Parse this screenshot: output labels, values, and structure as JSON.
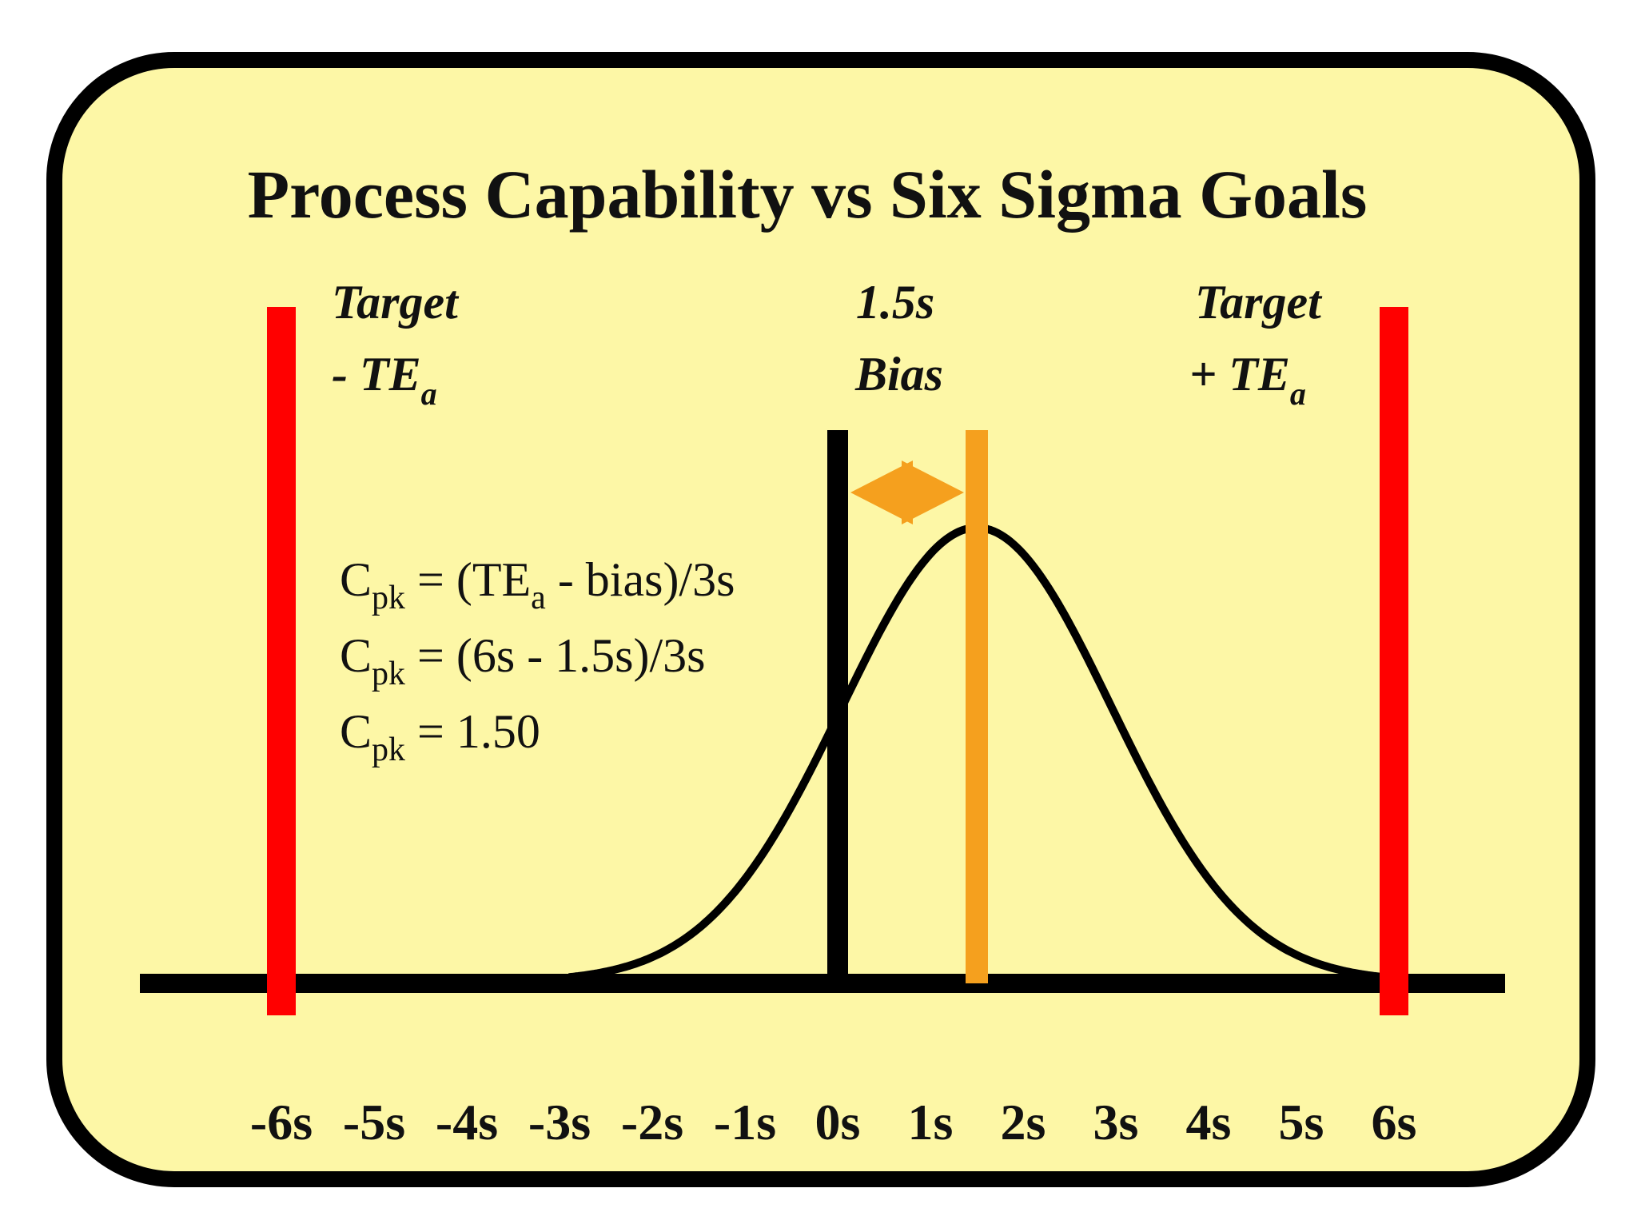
{
  "title": "Process Capability vs Six Sigma Goals",
  "labels": {
    "lower_limit": {
      "line1": "Target",
      "line2": "- TE",
      "sub": "a"
    },
    "upper_limit": {
      "line1": "Target",
      "line2": "+ TE",
      "sub": "a"
    },
    "bias": {
      "line1": "1.5s",
      "line2": "Bias"
    }
  },
  "formulas": [
    {
      "c": "C",
      "sub": "pk",
      "rest_a": " = (TE",
      "sub2": "a",
      "rest_b": " - bias)/3s"
    },
    {
      "c": "C",
      "sub": "pk",
      "rest_a": " = (6s - 1.5s)/3s",
      "sub2": "",
      "rest_b": ""
    },
    {
      "c": "C",
      "sub": "pk",
      "rest_a": " = 1.50",
      "sub2": "",
      "rest_b": ""
    }
  ],
  "axis_ticks": [
    "-6s",
    "-5s",
    "-4s",
    "-3s",
    "-2s",
    "-1s",
    "0s",
    "1s",
    "2s",
    "3s",
    "4s",
    "5s",
    "6s"
  ],
  "model": {
    "lower_limit_sigma": -6,
    "upper_limit_sigma": 6,
    "target_sigma": 0,
    "mean_sigma": 1.5
  },
  "colors": {
    "background": "#fdf7a6",
    "border": "#000000",
    "limit_line": "#ff0000",
    "bias_line": "#f5a01e",
    "curve": "#000000"
  }
}
